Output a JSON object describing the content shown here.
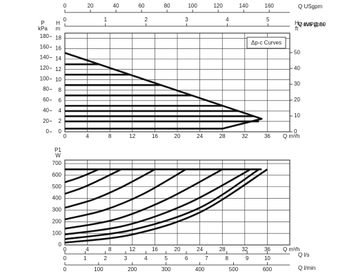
{
  "chart_data": [
    {
      "type": "line",
      "annotation": "Δp-c Curves",
      "x_label": "Q m³/h",
      "y_label": "H",
      "y_unit": "m",
      "kpa_label": "P",
      "kpa_unit": "kPa",
      "ft_label": "H",
      "ft_unit": "ft",
      "xlim": [
        0,
        40
      ],
      "xticks": [
        0,
        4,
        8,
        12,
        16,
        20,
        24,
        28,
        32,
        36
      ],
      "ylim": [
        0,
        19
      ],
      "yticks": [
        0,
        2,
        4,
        6,
        8,
        10,
        12,
        14,
        16,
        18
      ],
      "kpa_lim": [
        0,
        186.4
      ],
      "kpa_ticks": [
        0,
        20,
        40,
        60,
        80,
        100,
        120,
        140,
        160,
        180
      ],
      "ft_lim": [
        0,
        62.3
      ],
      "ft_ticks": [
        0,
        10,
        20,
        30,
        40,
        50
      ],
      "aux_axes": [
        {
          "label": "Q USgpm",
          "lim": [
            0,
            176.1
          ],
          "ticks": [
            0,
            20,
            40,
            60,
            80,
            100,
            120,
            140,
            160
          ]
        },
        {
          "label": "Q IMPgpm"
        },
        {
          "label": "V m/s Ø 50",
          "lim": [
            0,
            5.54
          ],
          "ticks": [
            0,
            1,
            2,
            3,
            4,
            5
          ]
        }
      ],
      "grid": true,
      "color": "#111111",
      "series": [
        {
          "x": [
            0,
            35,
            28,
            0
          ],
          "values": [
            15.2,
            2.5,
            0.6,
            0.6
          ]
        },
        {
          "x": [
            0,
            6.1
          ],
          "values": [
            13,
            13
          ]
        },
        {
          "x": [
            0,
            11.6
          ],
          "values": [
            11,
            11
          ]
        },
        {
          "x": [
            0,
            17.1
          ],
          "values": [
            9,
            9
          ]
        },
        {
          "x": [
            0,
            22.6
          ],
          "values": [
            7,
            7
          ]
        },
        {
          "x": [
            0,
            28.1
          ],
          "values": [
            5,
            5
          ]
        },
        {
          "x": [
            0,
            30.9
          ],
          "values": [
            4,
            4
          ]
        },
        {
          "x": [
            0,
            33.6
          ],
          "values": [
            3,
            3
          ]
        },
        {
          "x": [
            0,
            34.5
          ],
          "values": [
            2,
            2
          ]
        }
      ]
    },
    {
      "type": "line",
      "x_label": "Q m³/h",
      "y_label": "P1",
      "y_unit": "W",
      "xlim": [
        0,
        40
      ],
      "xticks": [
        0,
        4,
        8,
        12,
        16,
        20,
        24,
        28,
        32,
        36
      ],
      "ylim": [
        0,
        730
      ],
      "yticks": [
        0,
        100,
        200,
        300,
        400,
        500,
        600,
        700
      ],
      "aux_axes": [
        {
          "label": "Q l/s",
          "lim": [
            0,
            11.11
          ],
          "ticks": [
            0,
            1,
            2,
            3,
            4,
            5,
            6,
            7,
            8,
            9,
            10
          ]
        },
        {
          "label": "Q l/min",
          "lim": [
            0,
            666.7
          ],
          "ticks": [
            0,
            100,
            200,
            300,
            400,
            500,
            600
          ]
        }
      ],
      "grid": true,
      "color": "#111111",
      "series": [
        {
          "x": [
            0,
            35
          ],
          "values": [
            650,
            650
          ]
        },
        {
          "x": [
            0,
            2,
            4,
            6
          ],
          "values": [
            540,
            570,
            608,
            650
          ]
        },
        {
          "x": [
            0,
            3,
            6,
            10
          ],
          "values": [
            440,
            490,
            555,
            650
          ]
        },
        {
          "x": [
            0,
            5,
            10,
            16
          ],
          "values": [
            320,
            390,
            495,
            650
          ]
        },
        {
          "x": [
            0,
            7,
            14,
            21.5
          ],
          "values": [
            220,
            300,
            440,
            650
          ]
        },
        {
          "x": [
            0,
            9,
            18,
            28
          ],
          "values": [
            140,
            220,
            390,
            650
          ]
        },
        {
          "x": [
            0,
            11,
            22,
            33
          ],
          "values": [
            90,
            170,
            360,
            650
          ]
        },
        {
          "x": [
            0,
            12,
            24,
            34.5
          ],
          "values": [
            50,
            130,
            320,
            650
          ]
        },
        {
          "x": [
            0,
            12,
            24,
            36
          ],
          "values": [
            20,
            90,
            280,
            650
          ]
        }
      ]
    }
  ]
}
